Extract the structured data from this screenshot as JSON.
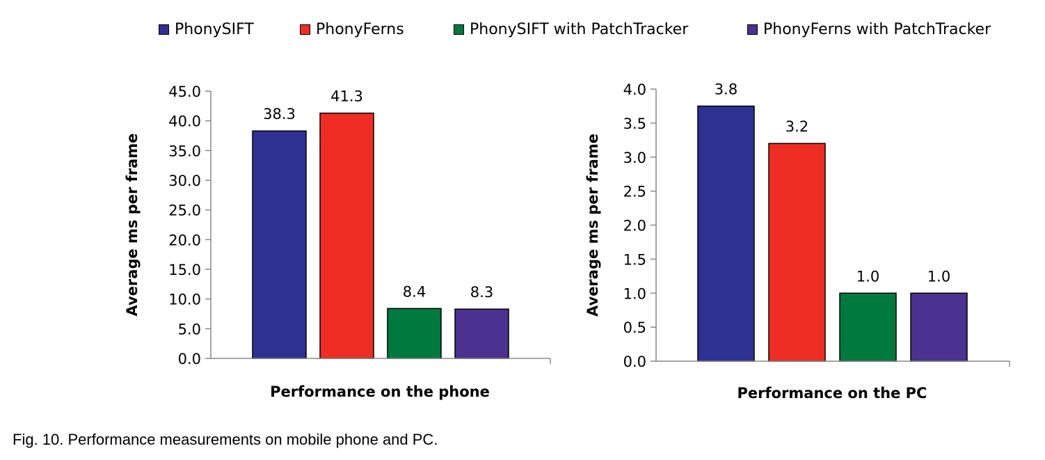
{
  "legend": [
    {
      "label": "PhonySIFT",
      "color": "#2e3192"
    },
    {
      "label": "PhonyFerns",
      "color": "#ee2e24"
    },
    {
      "label": "PhonySIFT with  PatchTracker",
      "color": "#00793f"
    },
    {
      "label": "PhonyFerns with  PatchTracker",
      "color": "#4b3190"
    }
  ],
  "caption": "Fig. 10. Performance measurements on mobile phone and PC.",
  "chart_data": [
    {
      "type": "bar",
      "title": "",
      "xlabel": "Performance on the phone",
      "ylabel": "Average ms per frame",
      "ylim": [
        0,
        45
      ],
      "yticks": [
        "0.0",
        "5.0",
        "10.0",
        "15.0",
        "20.0",
        "25.0",
        "30.0",
        "35.0",
        "40.0",
        "45.0"
      ],
      "grid": false,
      "legend": "top",
      "series": [
        {
          "name": "PhonySIFT",
          "values": [
            38.3
          ],
          "label": "38.3"
        },
        {
          "name": "PhonyFerns",
          "values": [
            41.3
          ],
          "label": "41.3"
        },
        {
          "name": "PhonySIFT with  PatchTracker",
          "values": [
            8.4
          ],
          "label": "8.4"
        },
        {
          "name": "PhonyFerns with  PatchTracker",
          "values": [
            8.3
          ],
          "label": "8.3"
        }
      ]
    },
    {
      "type": "bar",
      "title": "",
      "xlabel": "Performance on the PC",
      "ylabel": "Average ms per frame",
      "ylim": [
        0,
        4
      ],
      "yticks": [
        "0.0",
        "0.5",
        "1.0",
        "1.5",
        "2.0",
        "2.5",
        "3.0",
        "3.5",
        "4.0"
      ],
      "grid": false,
      "legend": "top",
      "series": [
        {
          "name": "PhonySIFT",
          "values": [
            3.75
          ],
          "label": "3.8"
        },
        {
          "name": "PhonyFerns",
          "values": [
            3.2
          ],
          "label": "3.2"
        },
        {
          "name": "PhonySIFT with  PatchTracker",
          "values": [
            1.0
          ],
          "label": "1.0"
        },
        {
          "name": "PhonyFerns with  PatchTracker",
          "values": [
            1.0
          ],
          "label": "1.0"
        }
      ]
    }
  ]
}
